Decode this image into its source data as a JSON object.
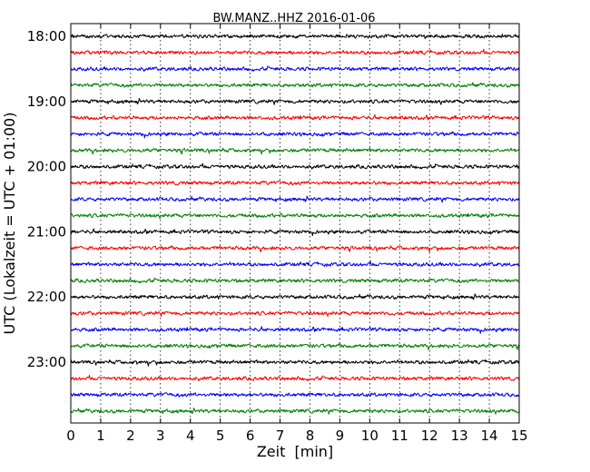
{
  "chart_data": {
    "type": "line",
    "title": "BW.MANZ..HHZ 2016-01-06",
    "xlabel": "Zeit  [min]",
    "ylabel": "UTC (Lokalzeit = UTC + 01:00)",
    "xlim": [
      0,
      15
    ],
    "x_ticks": [
      "0",
      "1",
      "2",
      "3",
      "4",
      "5",
      "6",
      "7",
      "8",
      "9",
      "10",
      "11",
      "12",
      "13",
      "14",
      "15"
    ],
    "y_tick_labels": [
      "18:00",
      "19:00",
      "20:00",
      "21:00",
      "22:00",
      "23:00"
    ],
    "grid": "vertical dotted",
    "trace_start_times": [
      "18:00",
      "18:15",
      "18:30",
      "18:45",
      "19:00",
      "19:15",
      "19:30",
      "19:45",
      "20:00",
      "20:15",
      "20:30",
      "20:45",
      "21:00",
      "21:15",
      "21:30",
      "21:45",
      "22:00",
      "22:15",
      "22:30",
      "22:45",
      "23:00",
      "23:15",
      "23:30",
      "23:45"
    ],
    "trace_colors": [
      "#000000",
      "#ff0000",
      "#0000ff",
      "#008000"
    ],
    "note_values": "continuous seismic noise, roughly equal amplitude in all 24 traces; no distinct events"
  }
}
